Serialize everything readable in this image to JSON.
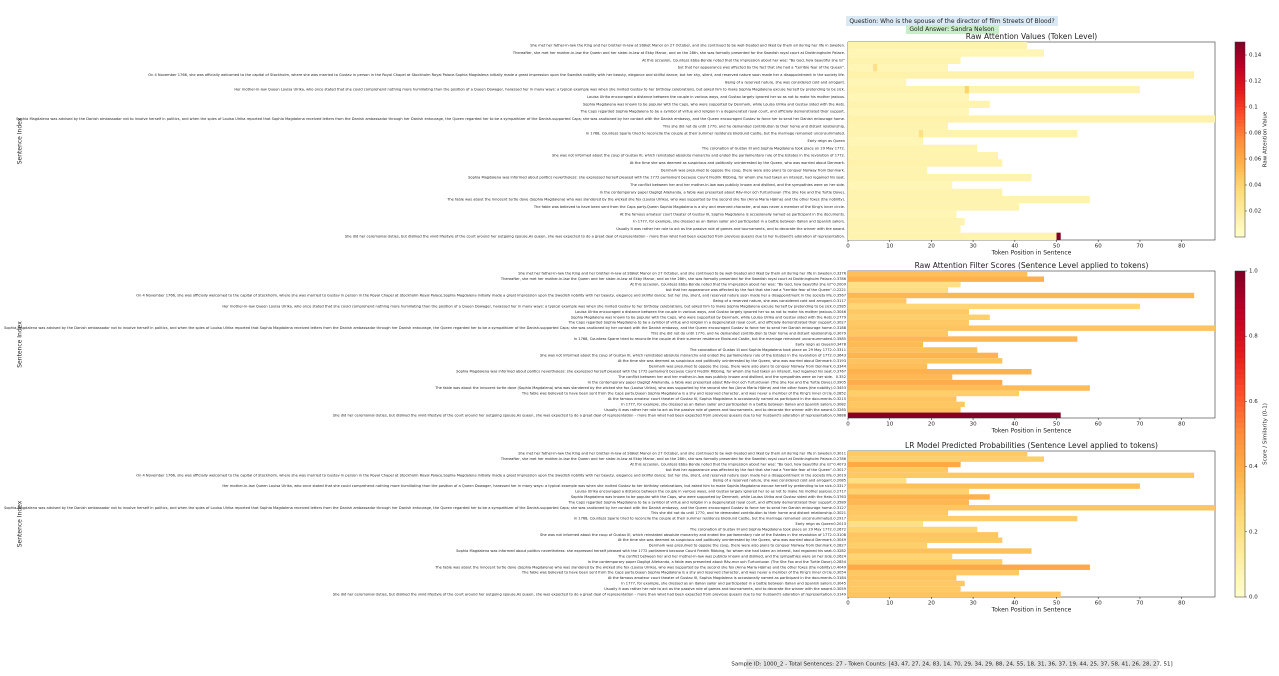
{
  "question": "Question: Who is the spouse of the director of film Streets Of Blood?",
  "gold_answer": "Gold Answer: Sandra Nelson",
  "footer": "Sample ID: 1000_2 - Total Sentences: 27 - Token Counts: [43, 47, 27, 24, 83, 14, 70, 29, 34, 29, 88, 24, 55, 18, 31, 36, 37, 19, 44, 25, 37, 58, 41, 26, 28, 27, 51]",
  "sentences": [
    "She met her father-in-law the King and her brother-in-law at Stäket Manor on 27 October, and she continued to be well-treated and liked by them all during her life in Sweden.",
    "Thereafter, she met her mother-in-law the Queen and her sister-in-law at Ekby Manor, and on the 28th, she was formally presented for the Swedish royal court at Drottningholm Palace.",
    "At this occasion, Countess Ebba Bonde noted that the impression about her was: \"By God, how beautiful she is!\"",
    "but that her appearance was affected by the fact that she had a \"terrible fear of the Queen\".",
    "On 4 November 1766, she was officially welcomed to the capital of Stockholm, where she was married to Gustav in person in the Royal Chapel at Stockholm Royal Palace.Sophia Magdalena initially made a great impression upon the Swedish nobility with her beauty, elegance and skillful dance; but her shy, silent, and reserved nature soon made her a disappointment in the society life.",
    "Being of a reserved nature, she was considered cold and arrogant.",
    "Her mother-in-law Queen Louisa Ulrika, who once stated that she could comprehend nothing more humiliating than the position of a Queen Dowager, harassed her in many ways: a typical example was when she invited Gustav to her birthday celebrations, but asked him to make Sophia Magdalena excuse herself by pretending to be sick.",
    "Louisa Ulrika encouraged a distance between the couple in various ways, and Gustav largely ignored her so as not to make his mother jealous.",
    "Sophia Magdalena was known to be popular with the Caps, who were supported by Denmark, while Louisa Ulrika and Gustav sided with the Hats.",
    "The Caps regarded Sophia Magdalena to be a symbol of virtue and religion in a degenerated royal court, and officially demonstrated their support.",
    "Sophia Magdalena was advised by the Danish ambassador not to involve herself in politics, and when the spies of Louisa Ulrika reported that Sophia Magdalena received letters from the Danish ambassador through her Danish entourage, the Queen regarded her to be a sympathizer of the Danish-supported Caps; she was cautioned by her contact with the Danish embassy, and the Queen encouraged Gustav to force her to send her Danish entourage home.",
    "This she did not do until 1770, and he demanded contribution to their home and distant relationship.",
    "In 1768, Countess Sparre tried to reconcile the couple at their summer residence Ekolsund Castle, but the marriage remained unconsummated.",
    "Early reign as Queen",
    "The coronation of Gustav III and Sophia Magdalena took place on 29 May 1772.",
    "She was not informed about the coup of Gustav III, which reinstated absolute monarchy and ended the parliamentary rule of the Estates in the revolution of 1772.",
    "At the time she was deemed as suspicious and politically uninterested by the Queen, who was worried about Denmark.",
    "Denmark was presumed to oppose the coup, there were also plans to conquer Norway from Denmark.",
    "Sophia Magdalena was informed about politics nevertheless: she expressed herself pleased with the 1772 parliament because Count Fredrik Ribbing, for whom she had taken an interest, had regained his seat.",
    "The conflict between her and her mother-in-law was publicly known and disliked, and the sympathies were on her side.",
    "In the contemporary paper Dagligt Allehanda, a fable was presented about Räv-mor och Turturduvan (The She Fox and the Turtle Dove).",
    "The fable was about the innocent turtle dove (Sophia Magdalena) who was slandered by the wicked she fox (Louisa Ulrika), who was supported by the second she fox (Anna Maria Hjärne) and the other foxes (the nobility).",
    "The fable was believed to have been sent from the Caps party.Queen Sophia Magdalena is a shy and reserved character, and was never a member of the King's inner circle.",
    "At the famous amateur court theater of Gustav III, Sophia Magdalena is occasionally named as participant in the documents.",
    "In 1777, for example, she dressed as an Italian sailor and participated in a battle between Italian and Spanish sailors.",
    "Usually it was rather her role to act as the passive role of games and tournaments, and to decorate the winner with the award.",
    "She did her ceremonial duties, but disliked the vivid lifestyle of the court around her outgoing spouse.As queen, she was expected to do a great deal of representation – more than what had been expected from previous queens due to her husband's adoration of representation."
  ],
  "token_counts": [
    43,
    47,
    27,
    24,
    83,
    14,
    70,
    29,
    34,
    29,
    88,
    24,
    55,
    18,
    31,
    36,
    37,
    19,
    44,
    25,
    37,
    58,
    41,
    26,
    28,
    27,
    51
  ],
  "chart_data": [
    {
      "type": "token-heatmap",
      "title": "Raw Attention Values (Token Level)",
      "xlabel": "Token Position in Sentence",
      "ylabel": "Sentence Index",
      "xlim": [
        0,
        88
      ],
      "xticks": [
        0,
        10,
        20,
        30,
        40,
        50,
        60,
        70,
        80
      ],
      "values": [
        0.012,
        0.01,
        0.012,
        0.01,
        0.014,
        0.01,
        0.012,
        0.01,
        0.012,
        0.01,
        0.014,
        0.012,
        0.012,
        0.01,
        0.012,
        0.012,
        0.014,
        0.012,
        0.012,
        0.01,
        0.012,
        0.012,
        0.012,
        0.01,
        0.012,
        0.012,
        0.012
      ],
      "highlights": [
        {
          "sentence": 26,
          "token": 50,
          "value": 0.15
        },
        {
          "sentence": 6,
          "token": 28,
          "value": 0.04
        },
        {
          "sentence": 12,
          "token": 17,
          "value": 0.03
        },
        {
          "sentence": 3,
          "token": 6,
          "value": 0.03
        }
      ],
      "colorbar": {
        "label": "Raw Attention Value",
        "lim": [
          0,
          0.15
        ],
        "ticks": [
          0.02,
          0.04,
          0.06,
          0.08,
          0.1,
          0.12,
          0.14
        ]
      }
    },
    {
      "type": "sentence-heatmap",
      "title": "Raw Attention Filter Scores (Sentence Level applied to tokens)",
      "xlabel": "Token Position in Sentence",
      "ylabel": "Sentence Index",
      "xlim": [
        0,
        88
      ],
      "xticks": [
        0,
        10,
        20,
        30,
        40,
        50,
        60,
        70,
        80
      ],
      "values": [
        0.3376,
        0.3786,
        0.2009,
        0.2221,
        0.3567,
        0.3117,
        0.2585,
        0.3046,
        0.2779,
        0.3027,
        0.3188,
        0.3079,
        0.3585,
        0.3478,
        0.3311,
        0.3643,
        0.3193,
        0.3344,
        0.3767,
        0.352,
        0.3905,
        0.3453,
        0.2852,
        0.3215,
        0.3082,
        0.3265,
        0.9888
      ],
      "colorbar": {
        "label": "Score / Similarity (0-1)",
        "lim": [
          0,
          1
        ],
        "ticks": [
          {
            "value": 0,
            "label": "0.0"
          },
          0.2,
          0.4,
          0.6,
          0.8,
          {
            "value": 1,
            "label": "1.0"
          }
        ]
      }
    },
    {
      "type": "sentence-heatmap",
      "title": "LR Model Predicted Probabilities (Sentence Level applied to tokens)",
      "xlabel": "Token Position in Sentence",
      "ylabel": "Sentence Index",
      "xlim": [
        0,
        88
      ],
      "xticks": [
        0,
        10,
        20,
        30,
        40,
        50,
        60,
        70,
        80
      ],
      "values": [
        0.3011,
        0.2786,
        0.4073,
        0.3017,
        0.3019,
        0.2085,
        0.3317,
        0.2717,
        0.3763,
        0.3589,
        0.3127,
        0.3021,
        0.2917,
        0.2013,
        0.2672,
        0.3108,
        0.3049,
        0.2827,
        0.3282,
        0.2624,
        0.2854,
        0.4049,
        0.3054,
        0.3184,
        0.3045,
        0.3059,
        0.3149
      ]
    }
  ]
}
